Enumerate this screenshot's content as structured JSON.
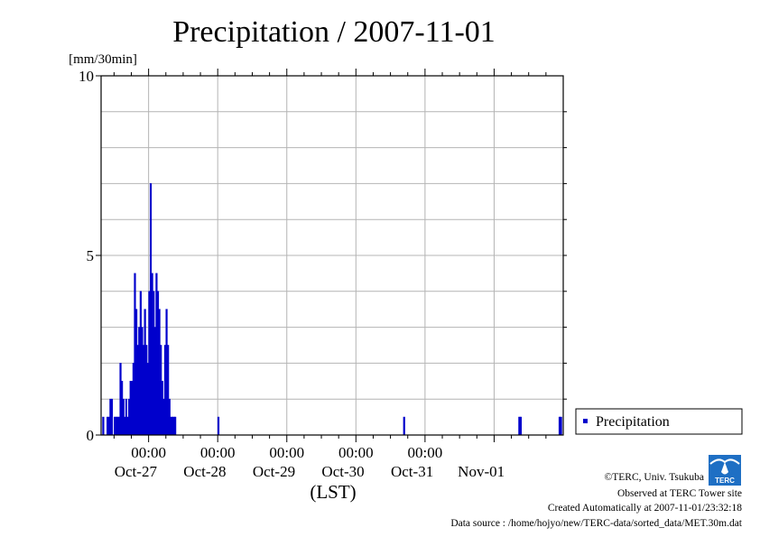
{
  "chart_data": {
    "type": "bar",
    "title": "Precipitation / 2007-11-01",
    "ylabel": "[mm/30min]",
    "xlabel": "(LST)",
    "ylim": [
      0,
      10
    ],
    "y_ticks": [
      "0",
      "5",
      "10"
    ],
    "x_time_ticks": [
      "00:00",
      "00:00",
      "00:00",
      "00:00",
      "00:00"
    ],
    "x_date_ticks": [
      "Oct-27",
      "Oct-28",
      "Oct-29",
      "Oct-30",
      "Oct-31",
      "Nov-01"
    ],
    "grid": true,
    "legend_position": "right",
    "series": [
      {
        "name": "Precipitation",
        "color": "#0000cc",
        "x": [
          "2007-10-26 08:00",
          "2007-10-26 09:30",
          "2007-10-26 10:00",
          "2007-10-26 10:30",
          "2007-10-26 11:00",
          "2007-10-26 12:00",
          "2007-10-26 12:30",
          "2007-10-26 13:00",
          "2007-10-26 13:30",
          "2007-10-26 14:00",
          "2007-10-26 14:30",
          "2007-10-26 15:00",
          "2007-10-26 15:30",
          "2007-10-26 16:00",
          "2007-10-26 16:30",
          "2007-10-26 17:00",
          "2007-10-26 17:30",
          "2007-10-26 18:00",
          "2007-10-26 18:30",
          "2007-10-26 19:00",
          "2007-10-26 19:30",
          "2007-10-26 20:00",
          "2007-10-26 20:30",
          "2007-10-26 21:00",
          "2007-10-26 21:30",
          "2007-10-26 22:00",
          "2007-10-26 22:30",
          "2007-10-26 23:00",
          "2007-10-26 23:30",
          "2007-10-27 00:00",
          "2007-10-27 00:30",
          "2007-10-27 01:00",
          "2007-10-27 01:30",
          "2007-10-27 02:00",
          "2007-10-27 02:30",
          "2007-10-27 03:00",
          "2007-10-27 03:30",
          "2007-10-27 04:00",
          "2007-10-27 04:30",
          "2007-10-27 05:00",
          "2007-10-27 05:30",
          "2007-10-27 06:00",
          "2007-10-27 06:30",
          "2007-10-27 07:00",
          "2007-10-27 07:30",
          "2007-10-27 08:00",
          "2007-10-27 08:30",
          "2007-10-27 09:00",
          "2007-10-28 00:00",
          "2007-10-30 16:30",
          "2007-11-01 08:30",
          "2007-11-01 09:00",
          "2007-11-01 22:30",
          "2007-11-01 23:00"
        ],
        "values": [
          0.5,
          0.5,
          0.5,
          1.0,
          1.0,
          0.5,
          0.5,
          0.5,
          0.5,
          2.0,
          1.5,
          1.0,
          0.5,
          1.0,
          0.5,
          1.0,
          1.5,
          1.5,
          2.0,
          4.5,
          3.5,
          2.5,
          3.0,
          4.0,
          3.0,
          2.5,
          3.5,
          2.5,
          2.0,
          4.0,
          7.0,
          4.5,
          4.0,
          3.0,
          4.5,
          4.0,
          3.5,
          2.5,
          1.5,
          1.0,
          2.5,
          3.5,
          2.5,
          1.0,
          0.5,
          0.5,
          0.5,
          0.5,
          0.5,
          0.5,
          0.5,
          0.5,
          0.5,
          0.5
        ]
      }
    ]
  },
  "credits": {
    "copyright": "©TERC, Univ. Tsukuba",
    "observed": "Observed at TERC Tower site",
    "created": "Created Automatically at 2007-11-01/23:32:18",
    "source": "Data source : /home/hojyo/new/TERC-data/sorted_data/MET.30m.dat"
  },
  "logo": {
    "text": "TERC"
  }
}
